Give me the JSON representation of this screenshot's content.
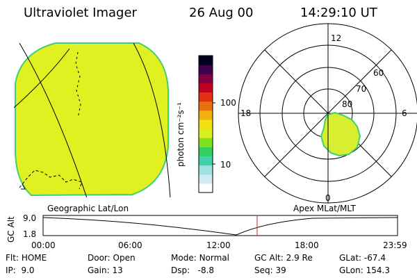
{
  "header": {
    "instrument": "Ultraviolet Imager",
    "date": "26 Aug 00",
    "time": "14:29:10 UT"
  },
  "colors": {
    "earth_fill": "#e0f020",
    "earth_edge": "#40d070",
    "oval_fill": "#d8ee30",
    "oval_edge": "#40d070"
  },
  "colorbar": {
    "unit": "photon cm⁻²s⁻¹",
    "ticks": [
      "100",
      "10"
    ],
    "scale": "log",
    "colors": [
      "#ffffff",
      "#cfeaf0",
      "#9fe0e0",
      "#40d0b0",
      "#30d060",
      "#80e020",
      "#d8f020",
      "#f0e010",
      "#f0b010",
      "#e87010",
      "#e03010",
      "#c00020",
      "#800040",
      "#400050",
      "#000020"
    ]
  },
  "polar_plot": {
    "mlt_labels": {
      "top": "12",
      "left": "18",
      "right": "6",
      "bottom": "0"
    },
    "lat_labels": [
      "60",
      "70",
      "80"
    ]
  },
  "footer_labels": {
    "left": "Geographic Lat/Lon",
    "right": "Apex MLat/MLT"
  },
  "altitude_plot": {
    "ylabel": "GC Alt",
    "y_ticks": [
      "9.0",
      "1.8"
    ],
    "x_ticks": [
      "00:00",
      "06:00",
      "12:00",
      "18:00",
      "23:59"
    ],
    "marker_time": "14:29"
  },
  "status": {
    "row1": [
      {
        "label": "Flt:",
        "value": "HOME"
      },
      {
        "label": "Door:",
        "value": "Open"
      },
      {
        "label": "Mode:",
        "value": "Normal"
      },
      {
        "label": "GC Alt:",
        "value": "2.9 Re"
      },
      {
        "label": "GLat:",
        "value": "-67.4"
      }
    ],
    "row2": [
      {
        "label": "IP:",
        "value": "9.0"
      },
      {
        "label": "Gain:",
        "value": "13"
      },
      {
        "label": "Dsp:",
        "value": "-8.8"
      },
      {
        "label": "Seq:",
        "value": "39"
      },
      {
        "label": "GLon:",
        "value": "154.3"
      }
    ]
  }
}
